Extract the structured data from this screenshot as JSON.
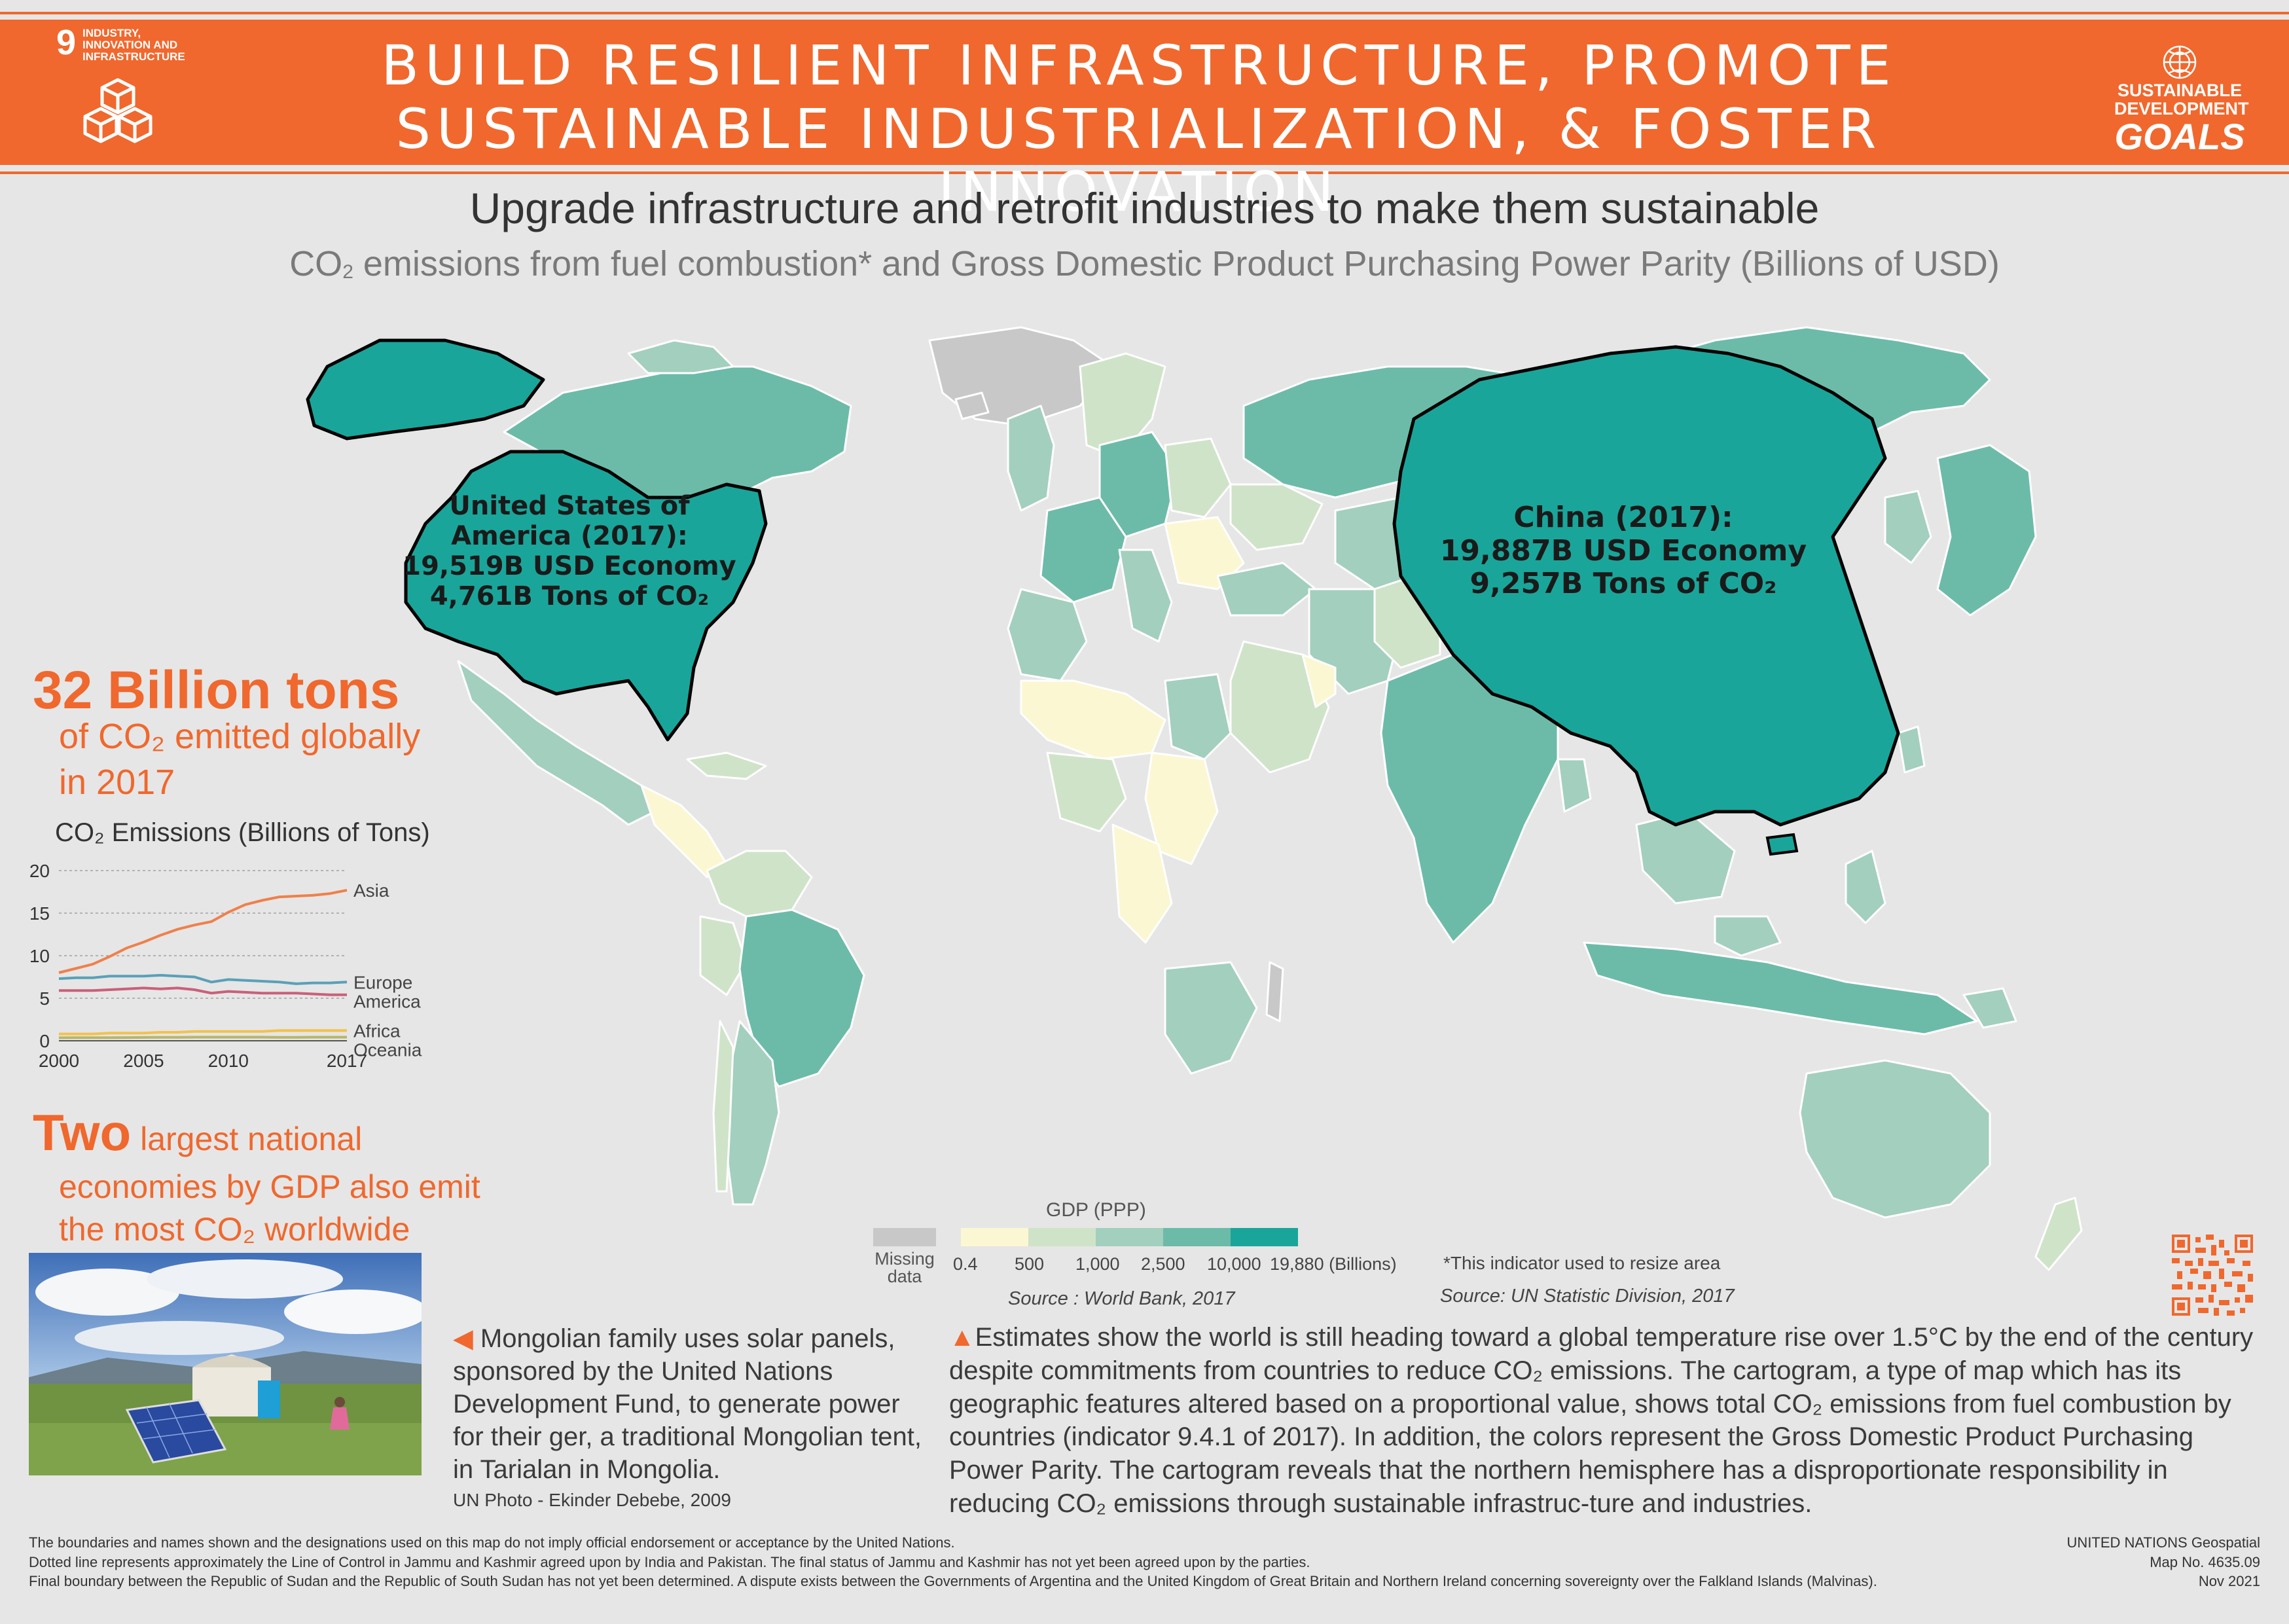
{
  "header": {
    "goal_number": "9",
    "goal_name": "INDUSTRY, INNOVATION AND INFRASTRUCTURE",
    "title_line1": "BUILD RESILIENT INFRASTRUCTURE, PROMOTE",
    "title_line2": "SUSTAINABLE INDUSTRIALIZATION, & FOSTER INNOVATION",
    "sdg_line1": "SUSTAINABLE",
    "sdg_line2": "DEVELOPMENT",
    "sdg_line3": "GOALS",
    "accent_color": "#f0682d"
  },
  "titles": {
    "main": "Upgrade infrastructure and retrofit industries to make them sustainable",
    "sub_a": "CO",
    "sub_sub": "2",
    "sub_b": " emissions from fuel combustion* and Gross Domestic Product Purchasing Power Parity (Billions of USD)"
  },
  "map_labels": {
    "usa": [
      "United States of",
      "America (2017):",
      "19,519B USD Economy",
      "4,761B Tons of CO₂"
    ],
    "china": [
      "China (2017):",
      "19,887B USD Economy",
      "9,257B Tons of CO₂"
    ]
  },
  "stats": {
    "big": "32 Billion tons",
    "sub1": "of CO₂ emitted globally",
    "sub2": "in 2017",
    "two_big": "Two",
    "two_rest1": " largest national",
    "two_rest2": "economies by GDP also emit",
    "two_rest3": "the most CO₂ worldwide"
  },
  "chart_data": {
    "type": "line",
    "title": "CO₂ Emissions (Billions of Tons)",
    "x": [
      2000,
      2001,
      2002,
      2003,
      2004,
      2005,
      2006,
      2007,
      2008,
      2009,
      2010,
      2011,
      2012,
      2013,
      2014,
      2015,
      2016,
      2017
    ],
    "x_tick_labels": [
      "2000",
      "2005",
      "2010",
      "2017"
    ],
    "y_tick_labels": [
      "0",
      "5",
      "10",
      "15",
      "20"
    ],
    "ylim": [
      0,
      20
    ],
    "grid": true,
    "series": [
      {
        "name": "Asia",
        "color": "#f0804a",
        "values": [
          8.0,
          8.5,
          9.0,
          9.9,
          10.9,
          11.6,
          12.4,
          13.1,
          13.6,
          14.0,
          15.1,
          16.0,
          16.5,
          16.9,
          17.0,
          17.1,
          17.3,
          17.7
        ]
      },
      {
        "name": "Europe",
        "color": "#5aa0b8",
        "values": [
          7.3,
          7.4,
          7.4,
          7.6,
          7.6,
          7.6,
          7.7,
          7.6,
          7.5,
          6.9,
          7.2,
          7.1,
          7.0,
          6.9,
          6.7,
          6.8,
          6.8,
          6.9
        ]
      },
      {
        "name": "America",
        "color": "#c9607a",
        "values": [
          5.9,
          5.9,
          5.9,
          6.0,
          6.1,
          6.2,
          6.1,
          6.2,
          6.0,
          5.6,
          5.8,
          5.7,
          5.6,
          5.6,
          5.6,
          5.5,
          5.4,
          5.4
        ]
      },
      {
        "name": "Africa",
        "color": "#f2c24a",
        "values": [
          0.8,
          0.8,
          0.8,
          0.9,
          0.9,
          0.9,
          1.0,
          1.0,
          1.1,
          1.1,
          1.1,
          1.1,
          1.1,
          1.2,
          1.2,
          1.2,
          1.2,
          1.2
        ]
      },
      {
        "name": "Oceania",
        "color": "#b7b56a",
        "values": [
          0.35,
          0.36,
          0.37,
          0.37,
          0.38,
          0.39,
          0.4,
          0.41,
          0.42,
          0.42,
          0.42,
          0.42,
          0.42,
          0.41,
          0.41,
          0.42,
          0.42,
          0.42
        ]
      }
    ]
  },
  "legend": {
    "title": "GDP (PPP)",
    "missing_label_1": "Missing",
    "missing_label_2": "data",
    "missing_color": "#c8c8c8",
    "classes": [
      {
        "color": "#fbf7d2"
      },
      {
        "color": "#cfe3c8"
      },
      {
        "color": "#a3cfbe"
      },
      {
        "color": "#6cbba9"
      },
      {
        "color": "#1aa59a"
      }
    ],
    "ticks": [
      "0.4",
      "500",
      "1,000",
      "2,500",
      "10,000",
      "19,880 (Billions)"
    ],
    "source": "Source : World Bank, 2017"
  },
  "notes": {
    "indicator": "*This indicator used to resize area",
    "source2": "Source: UN Statistic Division, 2017"
  },
  "photo": {
    "caption": "Mongolian family uses solar panels, sponsored by the United Nations Development Fund, to generate power for their ger, a traditional Mongolian tent, in Tarialan in Mongolia.",
    "credit": "UN Photo - Ekinder Debebe, 2009"
  },
  "body": {
    "text": "Estimates show the world is still heading toward a global temperature rise over 1.5°C by the end of the century despite commitments from countries to reduce CO₂ emissions. The cartogram, a type of map which has its geographic features altered based on a proportional value, shows total CO₂ emissions from fuel combustion by countries (indicator 9.4.1 of 2017). In addition, the colors represent the Gross Domestic Product Purchasing Power Parity. The cartogram reveals that the northern hemisphere has a disproportionate responsibility in reducing CO₂ emissions through sustainable infrastruc-ture and industries."
  },
  "footer": {
    "line1": "The boundaries and names shown and the designations used on this map do not imply official endorsement or acceptance by the United Nations.",
    "line2": "Dotted line represents approximately the Line of Control in Jammu and Kashmir agreed upon by India and Pakistan. The final status of Jammu and Kashmir has not yet been agreed upon by the parties.",
    "line3": "Final boundary between the Republic of Sudan and the Republic of South Sudan has not yet been determined. A dispute exists between the Governments of Argentina and the United Kingdom of Great Britain and Northern Ireland concerning sovereignty over the Falkland Islands (Malvinas).",
    "right1": "UNITED NATIONS Geospatial",
    "right2": "Map No. 4635.09",
    "right3": "Nov 2021"
  }
}
